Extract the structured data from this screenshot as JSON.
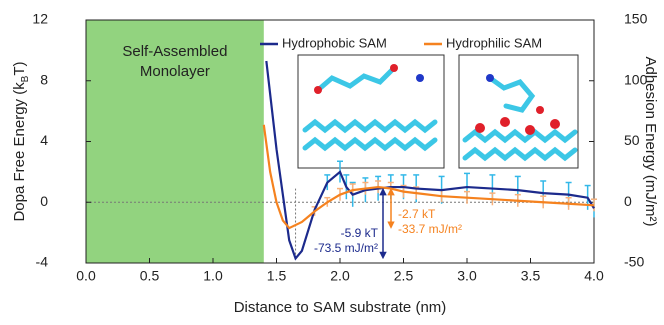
{
  "chart_data": {
    "type": "line",
    "xlabel": "Distance to SAM substrate (nm)",
    "ylabel_parts": [
      "Dopa Free Energy (k",
      "B",
      "T)"
    ],
    "y2label": "Adhesion Energy (mJ/m²)",
    "xlim": [
      0,
      4
    ],
    "ylim": [
      -4,
      12
    ],
    "y2lim": [
      -50,
      150
    ],
    "xticks": [
      {
        "value": 0,
        "label": "0.0"
      },
      0.5,
      {
        "value": 1,
        "label": "1.0"
      },
      1.5,
      {
        "value": 2,
        "label": "2.0"
      },
      2.5,
      {
        "value": 3,
        "label": "3.0"
      },
      3.5,
      {
        "value": 4,
        "label": "4.0"
      }
    ],
    "yticks": [
      -4,
      0,
      4,
      8,
      12
    ],
    "y2ticks": [
      -50,
      0,
      50,
      100,
      150
    ],
    "legend": "top",
    "region": {
      "label_lines": [
        "Self-Assembled",
        "Monolayer"
      ],
      "x": [
        0,
        1.4
      ],
      "color": "#92d37f"
    },
    "series": [
      {
        "name": "Hydrophobic SAM",
        "color": "#1c2a8c",
        "error_color": "#33b8e8",
        "x": [
          1.42,
          1.5,
          1.6,
          1.65,
          1.7,
          1.8,
          1.9,
          2.0,
          2.05,
          2.1,
          2.2,
          2.3,
          2.4,
          2.5,
          2.6,
          2.8,
          3.0,
          3.2,
          3.4,
          3.6,
          3.8,
          3.95,
          4.0
        ],
        "values": [
          9.3,
          3.5,
          -2.5,
          -3.7,
          -3.2,
          -0.5,
          1.3,
          2.0,
          1.0,
          0.5,
          0.8,
          0.9,
          1.0,
          1.0,
          0.9,
          0.8,
          1.0,
          0.9,
          0.8,
          0.6,
          0.5,
          0.3,
          -0.4
        ],
        "errors": [
          null,
          null,
          null,
          null,
          null,
          null,
          0.5,
          0.7,
          0.8,
          0.8,
          0.8,
          0.8,
          0.8,
          0.8,
          0.9,
          0.9,
          0.9,
          0.9,
          0.9,
          0.8,
          0.8,
          0.8,
          0.6
        ]
      },
      {
        "name": "Hydrophilic SAM",
        "color": "#f5821f",
        "error_color": "#f8b07a",
        "x": [
          1.4,
          1.45,
          1.5,
          1.55,
          1.6,
          1.7,
          1.8,
          1.9,
          2.0,
          2.1,
          2.2,
          2.3,
          2.4,
          2.5,
          2.6,
          2.8,
          3.0,
          3.2,
          3.4,
          3.6,
          3.8,
          4.0
        ],
        "values": [
          5.1,
          2.0,
          0,
          -1.2,
          -1.7,
          -1.3,
          -0.6,
          0,
          0.5,
          0.8,
          0.9,
          1.0,
          0.9,
          0.7,
          0.6,
          0.4,
          0.3,
          0.2,
          0.1,
          0.0,
          -0.1,
          -0.2
        ],
        "errors": [
          null,
          null,
          null,
          null,
          null,
          null,
          0.3,
          0.3,
          0.4,
          0.4,
          0.4,
          0.4,
          0.4,
          0.4,
          0.4,
          0.4,
          0.4,
          0.4,
          0.4,
          0.4,
          0.4,
          0.4
        ]
      }
    ],
    "annotations": [
      {
        "lines": [
          "-5.9 kT",
          "-73.5 mJ/m²"
        ],
        "color": "#1c2a8c"
      },
      {
        "lines": [
          "-2.7 kT",
          "-33.7 mJ/m²"
        ],
        "color": "#f5821f"
      }
    ]
  }
}
